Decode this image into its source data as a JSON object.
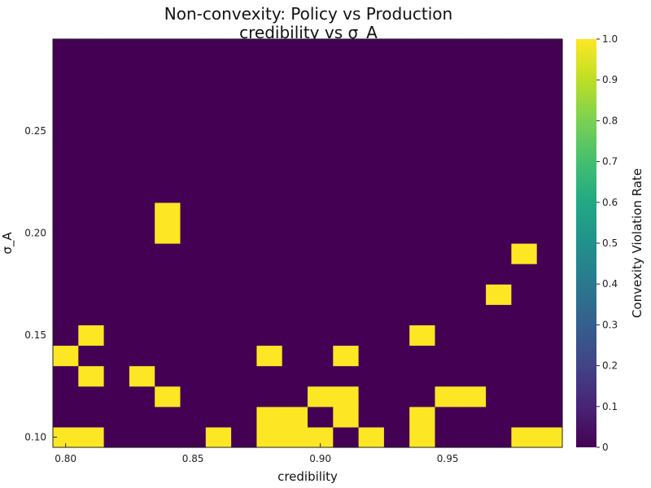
{
  "chart_data": {
    "type": "heatmap",
    "title": "Non-convexity: Policy vs Production",
    "subtitle": "credibility vs σ_A",
    "xlabel": "credibility",
    "ylabel": "σ_A",
    "colorbar_label": "Convexity Violation Rate",
    "colormap": "viridis",
    "colors": {
      "low": "#440154",
      "high": "#fde725"
    },
    "xlim": [
      0.795,
      0.995
    ],
    "ylim": [
      0.095,
      0.295
    ],
    "x_ticks": [
      "0.80",
      "0.85",
      "0.90",
      "0.95"
    ],
    "x_tick_values": [
      0.8,
      0.85,
      0.9,
      0.95
    ],
    "y_ticks": [
      "0.10",
      "0.15",
      "0.20",
      "0.25"
    ],
    "y_tick_values": [
      0.1,
      0.15,
      0.2,
      0.25
    ],
    "colorbar_ticks": [
      "0",
      "0.1",
      "0.2",
      "0.3",
      "0.4",
      "0.5",
      "0.6",
      "0.7",
      "0.8",
      "0.9",
      "1.0"
    ],
    "colorbar_range": [
      0,
      1
    ],
    "x_centers": [
      0.8,
      0.81,
      0.82,
      0.83,
      0.84,
      0.85,
      0.86,
      0.87,
      0.88,
      0.89,
      0.9,
      0.91,
      0.92,
      0.93,
      0.94,
      0.95,
      0.96,
      0.97,
      0.98,
      0.99
    ],
    "y_centers": [
      0.1,
      0.11,
      0.12,
      0.13,
      0.14,
      0.15,
      0.16,
      0.17,
      0.18,
      0.19,
      0.2,
      0.21,
      0.22,
      0.23,
      0.24,
      0.25,
      0.26,
      0.27,
      0.28,
      0.29
    ],
    "values": [
      [
        1,
        1,
        0,
        0,
        0,
        0,
        1,
        0,
        1,
        1,
        1,
        0,
        1,
        0,
        1,
        0,
        0,
        0,
        1,
        1
      ],
      [
        0,
        0,
        0,
        0,
        0,
        0,
        0,
        0,
        1,
        1,
        0,
        1,
        0,
        0,
        1,
        0,
        0,
        0,
        0,
        0
      ],
      [
        0,
        0,
        0,
        0,
        1,
        0,
        0,
        0,
        0,
        0,
        1,
        1,
        0,
        0,
        0,
        1,
        1,
        0,
        0,
        0
      ],
      [
        0,
        1,
        0,
        1,
        0,
        0,
        0,
        0,
        0,
        0,
        0,
        0,
        0,
        0,
        0,
        0,
        0,
        0,
        0,
        0
      ],
      [
        1,
        0,
        0,
        0,
        0,
        0,
        0,
        0,
        1,
        0,
        0,
        1,
        0,
        0,
        0,
        0,
        0,
        0,
        0,
        0
      ],
      [
        0,
        1,
        0,
        0,
        0,
        0,
        0,
        0,
        0,
        0,
        0,
        0,
        0,
        0,
        1,
        0,
        0,
        0,
        0,
        0
      ],
      [
        0,
        0,
        0,
        0,
        0,
        0,
        0,
        0,
        0,
        0,
        0,
        0,
        0,
        0,
        0,
        0,
        0,
        0,
        0,
        0
      ],
      [
        0,
        0,
        0,
        0,
        0,
        0,
        0,
        0,
        0,
        0,
        0,
        0,
        0,
        0,
        0,
        0,
        0,
        1,
        0,
        0
      ],
      [
        0,
        0,
        0,
        0,
        0,
        0,
        0,
        0,
        0,
        0,
        0,
        0,
        0,
        0,
        0,
        0,
        0,
        0,
        0,
        0
      ],
      [
        0,
        0,
        0,
        0,
        0,
        0,
        0,
        0,
        0,
        0,
        0,
        0,
        0,
        0,
        0,
        0,
        0,
        0,
        1,
        0
      ],
      [
        0,
        0,
        0,
        0,
        1,
        0,
        0,
        0,
        0,
        0,
        0,
        0,
        0,
        0,
        0,
        0,
        0,
        0,
        0,
        0
      ],
      [
        0,
        0,
        0,
        0,
        1,
        0,
        0,
        0,
        0,
        0,
        0,
        0,
        0,
        0,
        0,
        0,
        0,
        0,
        0,
        0
      ],
      [
        0,
        0,
        0,
        0,
        0,
        0,
        0,
        0,
        0,
        0,
        0,
        0,
        0,
        0,
        0,
        0,
        0,
        0,
        0,
        0
      ],
      [
        0,
        0,
        0,
        0,
        0,
        0,
        0,
        0,
        0,
        0,
        0,
        0,
        0,
        0,
        0,
        0,
        0,
        0,
        0,
        0
      ],
      [
        0,
        0,
        0,
        0,
        0,
        0,
        0,
        0,
        0,
        0,
        0,
        0,
        0,
        0,
        0,
        0,
        0,
        0,
        0,
        0
      ],
      [
        0,
        0,
        0,
        0,
        0,
        0,
        0,
        0,
        0,
        0,
        0,
        0,
        0,
        0,
        0,
        0,
        0,
        0,
        0,
        0
      ],
      [
        0,
        0,
        0,
        0,
        0,
        0,
        0,
        0,
        0,
        0,
        0,
        0,
        0,
        0,
        0,
        0,
        0,
        0,
        0,
        0
      ],
      [
        0,
        0,
        0,
        0,
        0,
        0,
        0,
        0,
        0,
        0,
        0,
        0,
        0,
        0,
        0,
        0,
        0,
        0,
        0,
        0
      ],
      [
        0,
        0,
        0,
        0,
        0,
        0,
        0,
        0,
        0,
        0,
        0,
        0,
        0,
        0,
        0,
        0,
        0,
        0,
        0,
        0
      ],
      [
        0,
        0,
        0,
        0,
        0,
        0,
        0,
        0,
        0,
        0,
        0,
        0,
        0,
        0,
        0,
        0,
        0,
        0,
        0,
        0
      ]
    ]
  }
}
